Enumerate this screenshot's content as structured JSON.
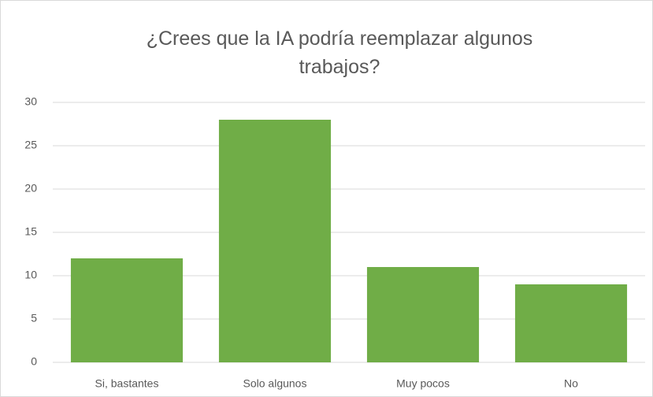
{
  "chart_data": {
    "type": "bar",
    "title": "¿Crees que la IA podría reemplazar algunos trabajos?",
    "categories": [
      "Si, bastantes",
      "Solo algunos",
      "Muy pocos",
      "No"
    ],
    "values": [
      12,
      28,
      11,
      9
    ],
    "color": "#70ad47",
    "ylim": [
      0,
      30
    ],
    "yticks": [
      0,
      5,
      10,
      15,
      20,
      25,
      30
    ],
    "grid": true
  }
}
